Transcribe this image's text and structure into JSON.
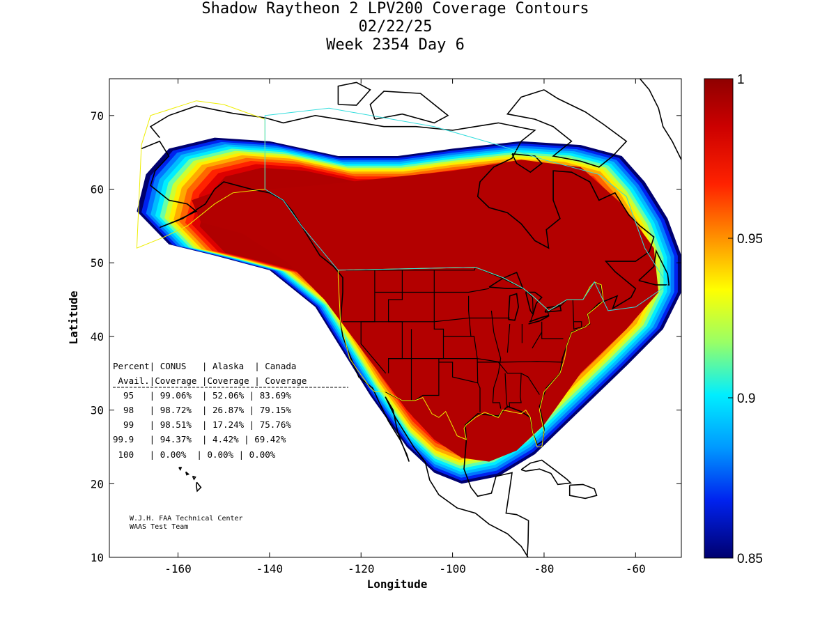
{
  "title": {
    "line1": "Shadow Raytheon 2 LPV200 Coverage Contours",
    "line2": "02/22/25",
    "line3": "Week 2354 Day 6"
  },
  "axes": {
    "xlabel": "Longitude",
    "ylabel": "Latitude",
    "xlim": [
      -175,
      -50
    ],
    "ylim": [
      10,
      75
    ],
    "xticks": [
      -160,
      -140,
      -120,
      -100,
      -80,
      -60
    ],
    "yticks": [
      10,
      20,
      30,
      40,
      50,
      60,
      70
    ]
  },
  "colorbar": {
    "min": 0.85,
    "max": 1,
    "ticks": [
      "1",
      "0.95",
      "0.9",
      "0.85"
    ],
    "colors": {
      "top": "#990000",
      "red": "#ff2200",
      "orange": "#ff9900",
      "yellow": "#ffff00",
      "cyan": "#00eeff",
      "blue": "#0044ff",
      "bottom": "#00006f"
    }
  },
  "stats_table": {
    "header1": "Percent| CONUS   | Alaska  | Canada",
    "header2": " Avail.|Coverage |Coverage | Coverage",
    "rows": [
      "  95   | 99.06%  | 52.06% | 83.69%",
      "  98   | 98.72%  | 26.87% | 79.15%",
      "  99   | 98.51%  | 17.24% | 75.76%",
      "99.9   | 94.37%  | 4.42% | 69.42%",
      " 100   | 0.00%  | 0.00% | 0.00%"
    ]
  },
  "credits": {
    "line1": "W.J.H. FAA Technical Center",
    "line2": "WAAS Test Team"
  },
  "chart_data": {
    "type": "contour-map",
    "title": "Shadow Raytheon 2 LPV200 Coverage Contours",
    "date": "02/22/25",
    "week": "Week 2354 Day 6",
    "xlabel": "Longitude",
    "ylabel": "Latitude",
    "xlim": [
      -175,
      -50
    ],
    "ylim": [
      10,
      75
    ],
    "colorbar_range": [
      0.85,
      1
    ],
    "coverage_table": {
      "columns": [
        "Percent Avail.",
        "CONUS Coverage",
        "Alaska Coverage",
        "Canada Coverage"
      ],
      "rows": [
        [
          "95",
          "99.06%",
          "52.06%",
          "83.69%"
        ],
        [
          "98",
          "98.72%",
          "26.87%",
          "79.15%"
        ],
        [
          "99",
          "98.51%",
          "17.24%",
          "75.76%"
        ],
        [
          "99.9",
          "94.37%",
          "4.42%",
          "69.42%"
        ],
        [
          "100",
          "0.00%",
          "0.00%",
          "0.00%"
        ]
      ]
    },
    "coverage_region_outline": [
      [
        -169,
        57
      ],
      [
        -167,
        62
      ],
      [
        -162,
        65.5
      ],
      [
        -152,
        67
      ],
      [
        -140,
        66.5
      ],
      [
        -125,
        64.5
      ],
      [
        -112,
        64.5
      ],
      [
        -100,
        65.5
      ],
      [
        -85,
        66.5
      ],
      [
        -72,
        66
      ],
      [
        -63,
        64.5
      ],
      [
        -58,
        61
      ],
      [
        -53,
        56
      ],
      [
        -50,
        51
      ],
      [
        -50,
        46
      ],
      [
        -54,
        41
      ],
      [
        -62,
        36
      ],
      [
        -72,
        30
      ],
      [
        -82,
        24
      ],
      [
        -90,
        21
      ],
      [
        -98,
        20
      ],
      [
        -104,
        21.5
      ],
      [
        -110,
        25
      ],
      [
        -118,
        32
      ],
      [
        -124,
        38
      ],
      [
        -130,
        44
      ],
      [
        -140,
        49
      ],
      [
        -152,
        51
      ],
      [
        -162,
        52.5
      ],
      [
        -169,
        57
      ]
    ]
  }
}
